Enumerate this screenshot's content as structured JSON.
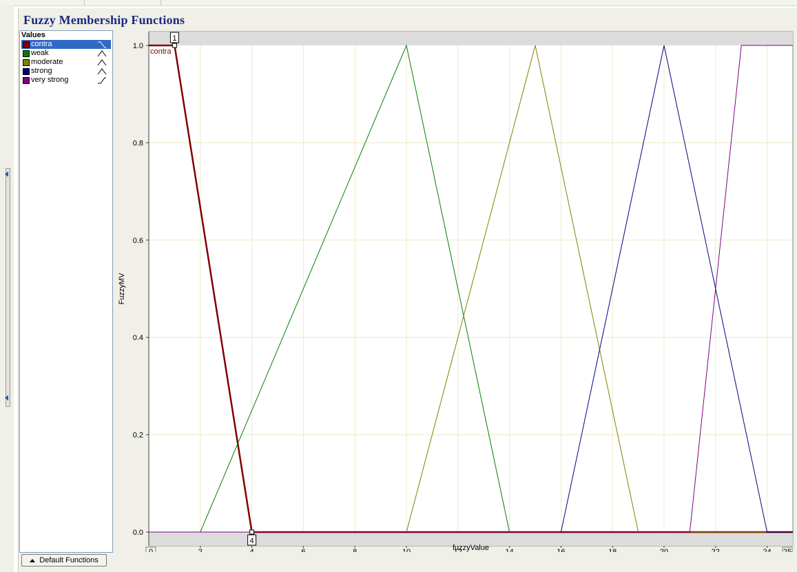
{
  "title": "Fuzzy Membership Functions",
  "values_panel": {
    "header": "Values",
    "items": [
      {
        "label": "contra",
        "color": "#800000",
        "shape": "decreasing",
        "selected": true
      },
      {
        "label": "weak",
        "color": "#008000",
        "shape": "triangle",
        "selected": false
      },
      {
        "label": "moderate",
        "color": "#808000",
        "shape": "triangle",
        "selected": false
      },
      {
        "label": "strong",
        "color": "#000080",
        "shape": "triangle",
        "selected": false
      },
      {
        "label": "very strong",
        "color": "#800080",
        "shape": "increasing",
        "selected": false
      }
    ]
  },
  "default_button": {
    "label": "Default Functions",
    "icon": "triangle-up-icon"
  },
  "chart_data": {
    "type": "line",
    "xlabel": "fuzzyValue",
    "ylabel": "FuzzyMV",
    "xlim": [
      0,
      25
    ],
    "ylim": [
      0,
      1
    ],
    "x_ticks": [
      "0",
      "2",
      "4",
      "6",
      "8",
      "10",
      "12",
      "14",
      "16",
      "18",
      "20",
      "22",
      "24",
      "25"
    ],
    "y_ticks": [
      "0.0",
      "0.2",
      "0.4",
      "0.6",
      "0.8",
      "1.0"
    ],
    "grid": true,
    "selected_series": "contra",
    "handles": [
      {
        "label": "1",
        "x": 1,
        "y": 1
      },
      {
        "label": "4",
        "x": 4,
        "y": 0
      }
    ],
    "series": [
      {
        "name": "contra",
        "color": "#800000",
        "points": [
          [
            0,
            1
          ],
          [
            1,
            1
          ],
          [
            4,
            0
          ],
          [
            25,
            0
          ]
        ]
      },
      {
        "name": "weak",
        "color": "#008000",
        "points": [
          [
            0,
            0
          ],
          [
            2,
            0
          ],
          [
            10,
            1
          ],
          [
            14,
            0
          ],
          [
            25,
            0
          ]
        ]
      },
      {
        "name": "moderate",
        "color": "#808000",
        "points": [
          [
            0,
            0
          ],
          [
            10,
            0
          ],
          [
            15,
            1
          ],
          [
            19,
            0
          ],
          [
            25,
            0
          ]
        ]
      },
      {
        "name": "strong",
        "color": "#000080",
        "points": [
          [
            0,
            0
          ],
          [
            16,
            0
          ],
          [
            20,
            1
          ],
          [
            24,
            0
          ],
          [
            25,
            0
          ]
        ]
      },
      {
        "name": "very strong",
        "color": "#800080",
        "points": [
          [
            0,
            0
          ],
          [
            21,
            0
          ],
          [
            23,
            1
          ],
          [
            25,
            1
          ]
        ]
      }
    ]
  }
}
